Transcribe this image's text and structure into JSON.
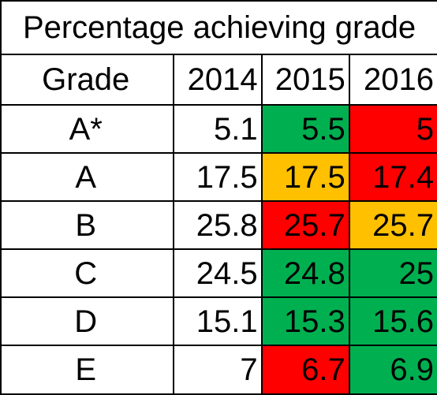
{
  "title": "Percentage achieving grade",
  "header": {
    "grade": "Grade",
    "years": [
      "2014",
      "2015",
      "2016"
    ]
  },
  "colors": {
    "green": "#00B050",
    "amber": "#FFC000",
    "red": "#FF0000",
    "none": "#FFFFFF"
  },
  "rows": [
    {
      "grade": "A*",
      "values": [
        "5.1",
        "5.5",
        "5"
      ],
      "fills": [
        "none",
        "green",
        "red"
      ]
    },
    {
      "grade": "A",
      "values": [
        "17.5",
        "17.5",
        "17.4"
      ],
      "fills": [
        "none",
        "amber",
        "red"
      ]
    },
    {
      "grade": "B",
      "values": [
        "25.8",
        "25.7",
        "25.7"
      ],
      "fills": [
        "none",
        "red",
        "amber"
      ]
    },
    {
      "grade": "C",
      "values": [
        "24.5",
        "24.8",
        "25"
      ],
      "fills": [
        "none",
        "green",
        "green"
      ]
    },
    {
      "grade": "D",
      "values": [
        "15.1",
        "15.3",
        "15.6"
      ],
      "fills": [
        "none",
        "green",
        "green"
      ]
    },
    {
      "grade": "E",
      "values": [
        "7",
        "6.7",
        "6.9"
      ],
      "fills": [
        "none",
        "red",
        "green"
      ]
    }
  ]
}
